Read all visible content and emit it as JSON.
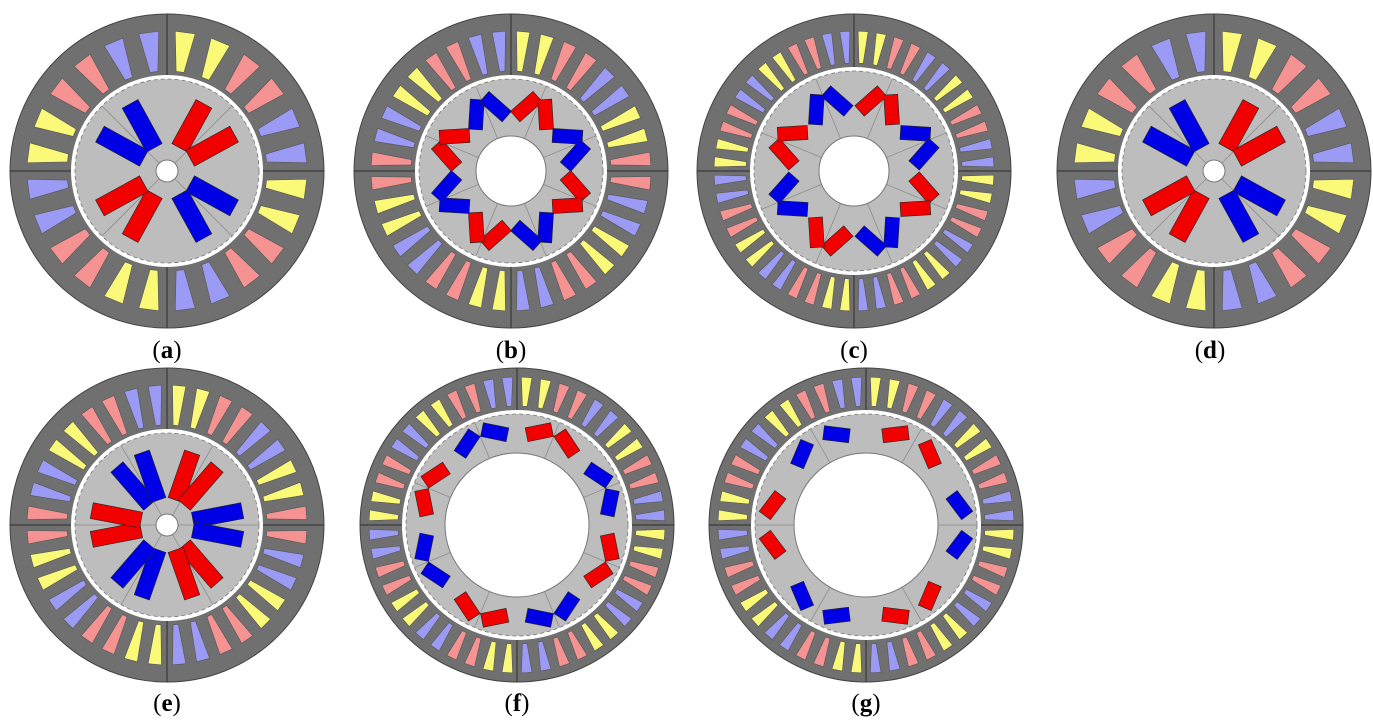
{
  "colors": {
    "stator": "#707070",
    "rotor": "#bdbdbd",
    "phase_a": "#f59393",
    "phase_b": "#9b9bf5",
    "phase_c": "#fafa78",
    "magnet_n": "#f20000",
    "magnet_s": "#0000e6"
  },
  "panels": [
    {
      "id": "a",
      "caption": "a",
      "slots": 24,
      "poles": 4,
      "shaft": "small",
      "magnet_style": "spoke-v"
    },
    {
      "id": "b",
      "caption": "b",
      "slots": 36,
      "poles": 8,
      "shaft": "medium",
      "magnet_style": "v-shape"
    },
    {
      "id": "c",
      "caption": "c",
      "slots": 48,
      "poles": 8,
      "shaft": "medium",
      "magnet_style": "v-shape"
    },
    {
      "id": "d",
      "caption": "d",
      "slots": 24,
      "poles": 4,
      "shaft": "small",
      "magnet_style": "spoke-double"
    },
    {
      "id": "e",
      "caption": "e",
      "slots": 36,
      "poles": 6,
      "shaft": "small",
      "magnet_style": "spoke-double"
    },
    {
      "id": "f",
      "caption": "f",
      "slots": 48,
      "poles": 8,
      "shaft": "large",
      "magnet_style": "flat-v"
    },
    {
      "id": "g",
      "caption": "g",
      "slots": 48,
      "poles": 6,
      "shaft": "large",
      "magnet_style": "flat-v"
    }
  ]
}
